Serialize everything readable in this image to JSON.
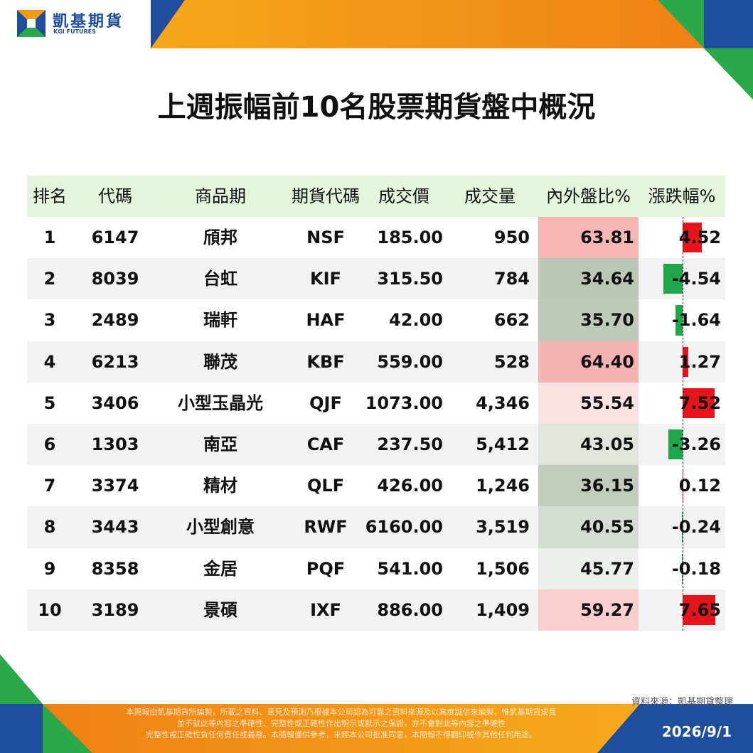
{
  "header": {
    "brand": "凱基期貨",
    "brand_en": "KGI FUTURES"
  },
  "title": "上週振幅前10名股票期貨盤中概況",
  "table": {
    "columns": [
      "排名",
      "代碼",
      "商品期",
      "期貨代碼",
      "成交價",
      "成交量",
      "內外盤比%",
      "漲跌幅%"
    ],
    "rows": [
      [
        "1",
        "6147",
        "頎邦",
        "NSF",
        "185.00",
        "950",
        "63.81",
        "4.52"
      ],
      [
        "2",
        "8039",
        "台虹",
        "KIF",
        "315.50",
        "784",
        "34.64",
        "-4.54"
      ],
      [
        "3",
        "2489",
        "瑞軒",
        "HAF",
        "42.00",
        "662",
        "35.70",
        "-1.64"
      ],
      [
        "4",
        "6213",
        "聯茂",
        "KBF",
        "559.00",
        "528",
        "64.40",
        "1.27"
      ],
      [
        "5",
        "3406",
        "小型玉晶光",
        "QJF",
        "1073.00",
        "4,346",
        "55.54",
        "7.52"
      ],
      [
        "6",
        "1303",
        "南亞",
        "CAF",
        "237.50",
        "5,412",
        "43.05",
        "-3.26"
      ],
      [
        "7",
        "3374",
        "精材",
        "QLF",
        "426.00",
        "1,246",
        "36.15",
        "0.12"
      ],
      [
        "8",
        "3443",
        "小型創意",
        "RWF",
        "6160.00",
        "3,519",
        "40.55",
        "-0.24"
      ],
      [
        "9",
        "8358",
        "金居",
        "PQF",
        "541.00",
        "1,506",
        "45.77",
        "-0.18"
      ],
      [
        "10",
        "3189",
        "景碩",
        "IXF",
        "886.00",
        "1,409",
        "59.27",
        "7.65"
      ]
    ]
  },
  "footer": {
    "source": "資料來源：凱基期貨整理",
    "disclaimer": [
      "本簡報由凱基期貨所編製，所載之資料、意見及預測乃根據本公司認為可靠之資料來源及以高度誠信來編製，惟凱基期貨成員",
      "並不就此等內容之準確性、完整性或正確性作出明示或默示之保證，亦不會對此等內容之準確性",
      "完整性或正確性負任何責任或義務。本簡報僅供參考，未經本公司批准同意，本簡報不得翻印或作其他任何用途。"
    ],
    "date": "2026/9/1"
  }
}
